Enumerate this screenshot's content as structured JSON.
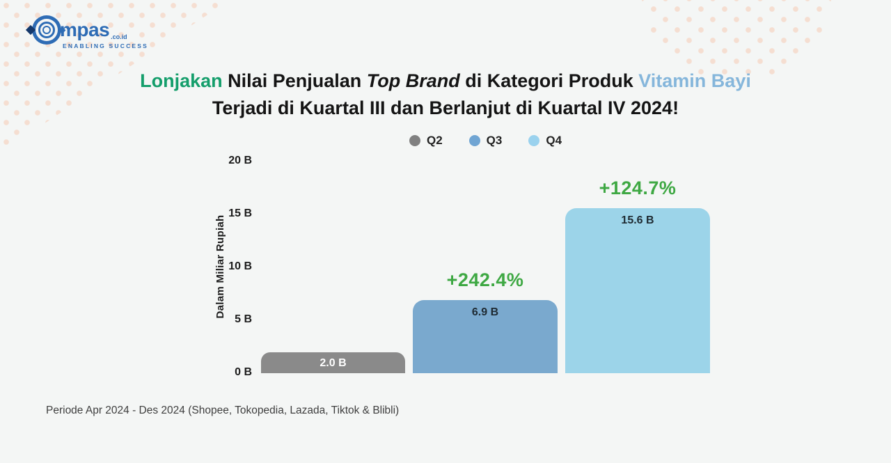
{
  "page": {
    "background": "#f4f6f5",
    "dot_pattern_color": "#f5ded1"
  },
  "logo": {
    "brand_text": "mpas",
    "suffix": ".co.id",
    "tagline": "ENABLING SUCCESS",
    "color": "#2e6cb5"
  },
  "title": {
    "line1_segments": [
      {
        "text": "Lonjakan",
        "style": "green"
      },
      {
        "text": " Nilai Penjualan ",
        "style": "black"
      },
      {
        "text": "Top Brand",
        "style": "italic"
      },
      {
        "text": " di Kategori Produk ",
        "style": "black"
      },
      {
        "text": "Vitamin Bayi",
        "style": "blue"
      }
    ],
    "line2": "Terjadi di Kuartal III dan Berlanjut di Kuartal IV 2024!",
    "colors": {
      "green": "#149e6b",
      "black": "#141414",
      "italic": "#141414",
      "blue": "#85b6db"
    }
  },
  "chart_data": {
    "type": "bar",
    "categories": [
      "Q2",
      "Q3",
      "Q4"
    ],
    "values": [
      2.0,
      6.9,
      15.6
    ],
    "bar_labels": [
      "2.0 B",
      "6.9 B",
      "15.6 B"
    ],
    "bar_colors": [
      "#8a8a8a",
      "#7aa9ce",
      "#9cd4e9"
    ],
    "bar_label_colors": [
      "#ffffff",
      "#1e2a32",
      "#1e2a32"
    ],
    "growth_labels": [
      "",
      "+242.4%",
      "+124.7%"
    ],
    "growth_color": "#3ea843",
    "ylabel": "Dalam Miliar Rupiah",
    "yticks": [
      "20 B",
      "15 B",
      "10 B",
      "5 B",
      "0 B"
    ],
    "ytick_values": [
      20,
      15,
      10,
      5,
      0
    ],
    "ylim": [
      0,
      20
    ],
    "grid": false,
    "legend_position": "top",
    "legend": [
      {
        "label": "Q2",
        "color": "#808080"
      },
      {
        "label": "Q3",
        "color": "#70a5d3"
      },
      {
        "label": "Q4",
        "color": "#9ad2ee"
      }
    ]
  },
  "footer": {
    "text": "Periode Apr 2024 - Des 2024 (Shopee, Tokopedia, Lazada, Tiktok & Blibli)"
  }
}
